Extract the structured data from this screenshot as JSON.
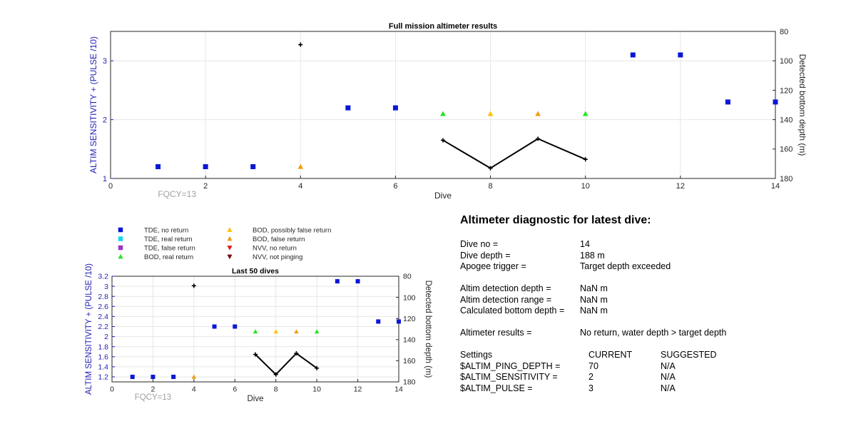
{
  "colors": {
    "axis_left": "#1f1fb4",
    "grid": "#e6e6e6",
    "tde_no_return": "#0a17d6",
    "tde_real_return": "#19d6f0",
    "tde_false_return": "#9b36c8",
    "bod_real_return": "#22e622",
    "bod_possibly_false": "#ffc100",
    "bod_false_return": "#f29d12",
    "nvv_no_return": "#e01818",
    "nvv_not_pinging": "#7a0d0d",
    "fqcy_text": "#a0a0a0"
  },
  "legend": {
    "items": [
      {
        "label": "TDE, no return",
        "marker": "square",
        "color": "#0a17d6"
      },
      {
        "label": "TDE, real return",
        "marker": "square",
        "color": "#19d6f0"
      },
      {
        "label": "TDE, false return",
        "marker": "square",
        "color": "#9b36c8"
      },
      {
        "label": "BOD, real return",
        "marker": "triangle-up",
        "color": "#22e622"
      },
      {
        "label": "BOD, possibly false return",
        "marker": "triangle-up",
        "color": "#ffc100"
      },
      {
        "label": "BOD, false return",
        "marker": "triangle-up",
        "color": "#f29d12"
      },
      {
        "label": "NVV, no return",
        "marker": "triangle-down",
        "color": "#e01818"
      },
      {
        "label": "NVV, not pinging",
        "marker": "triangle-down",
        "color": "#7a0d0d"
      }
    ]
  },
  "chart_data": [
    {
      "type": "scatter",
      "title": "Full mission altimeter results",
      "xlabel": "Dive",
      "ylabel": "ALTIM SENSITIVITY + (PULSE /10)",
      "ylabel_right": "Detected bottom depth (m)",
      "annotation": "FQCY=13",
      "xlim": [
        0,
        14
      ],
      "ylim": [
        1,
        3.5
      ],
      "ylim_right": [
        80,
        180
      ],
      "x_ticks": [
        "0",
        "2",
        "4",
        "6",
        "8",
        "10",
        "12",
        "14"
      ],
      "y_ticks": [
        "1",
        "2",
        "3"
      ],
      "y_ticks_right": [
        "80",
        "100",
        "120",
        "140",
        "160",
        "180"
      ],
      "grid": true,
      "points": [
        {
          "x": 1,
          "y": 1.2,
          "cls": "tde_no_return"
        },
        {
          "x": 2,
          "y": 1.2,
          "cls": "tde_no_return"
        },
        {
          "x": 3,
          "y": 1.2,
          "cls": "tde_no_return"
        },
        {
          "x": 4,
          "y": 1.2,
          "cls": "bod_false_return"
        },
        {
          "x": 5,
          "y": 2.2,
          "cls": "tde_no_return"
        },
        {
          "x": 6,
          "y": 2.2,
          "cls": "tde_no_return"
        },
        {
          "x": 7,
          "y": 2.1,
          "cls": "bod_real_return"
        },
        {
          "x": 8,
          "y": 2.1,
          "cls": "bod_possibly_false"
        },
        {
          "x": 9,
          "y": 2.1,
          "cls": "bod_false_return"
        },
        {
          "x": 10,
          "y": 2.1,
          "cls": "bod_real_return"
        },
        {
          "x": 11,
          "y": 3.1,
          "cls": "tde_no_return"
        },
        {
          "x": 12,
          "y": 3.1,
          "cls": "tde_no_return"
        },
        {
          "x": 13,
          "y": 2.3,
          "cls": "tde_no_return"
        },
        {
          "x": 14,
          "y": 2.3,
          "cls": "tde_no_return"
        }
      ],
      "bottom_depth": [
        {
          "x": 4,
          "depth": 89
        },
        {
          "x": 7,
          "depth": 154
        },
        {
          "x": 8,
          "depth": 173
        },
        {
          "x": 9,
          "depth": 153
        },
        {
          "x": 10,
          "depth": 167
        }
      ]
    },
    {
      "type": "scatter",
      "title": "Last 50 dives",
      "xlabel": "Dive",
      "ylabel": "ALTIM SENSITIVITY + (PULSE /10)",
      "ylabel_right": "Detected bottom depth (m)",
      "annotation": "FQCY=13",
      "xlim": [
        0,
        14
      ],
      "ylim": [
        1.1,
        3.2
      ],
      "ylim_right": [
        80,
        180
      ],
      "x_ticks": [
        "0",
        "2",
        "4",
        "6",
        "8",
        "10",
        "12",
        "14"
      ],
      "y_ticks": [
        "1.2",
        "1.4",
        "1.6",
        "1.8",
        "2",
        "2.2",
        "2.4",
        "2.6",
        "2.8",
        "3",
        "3.2"
      ],
      "y_ticks_right": [
        "80",
        "100",
        "120",
        "140",
        "160",
        "180"
      ],
      "grid": true,
      "points": [
        {
          "x": 1,
          "y": 1.2,
          "cls": "tde_no_return"
        },
        {
          "x": 2,
          "y": 1.2,
          "cls": "tde_no_return"
        },
        {
          "x": 3,
          "y": 1.2,
          "cls": "tde_no_return"
        },
        {
          "x": 4,
          "y": 1.2,
          "cls": "bod_false_return"
        },
        {
          "x": 5,
          "y": 2.2,
          "cls": "tde_no_return"
        },
        {
          "x": 6,
          "y": 2.2,
          "cls": "tde_no_return"
        },
        {
          "x": 7,
          "y": 2.1,
          "cls": "bod_real_return"
        },
        {
          "x": 8,
          "y": 2.1,
          "cls": "bod_possibly_false"
        },
        {
          "x": 9,
          "y": 2.1,
          "cls": "bod_false_return"
        },
        {
          "x": 10,
          "y": 2.1,
          "cls": "bod_real_return"
        },
        {
          "x": 11,
          "y": 3.1,
          "cls": "tde_no_return"
        },
        {
          "x": 12,
          "y": 3.1,
          "cls": "tde_no_return"
        },
        {
          "x": 13,
          "y": 2.3,
          "cls": "tde_no_return"
        },
        {
          "x": 14,
          "y": 2.3,
          "cls": "tde_no_return"
        }
      ],
      "bottom_depth": [
        {
          "x": 4,
          "depth": 89
        },
        {
          "x": 7,
          "depth": 154
        },
        {
          "x": 8,
          "depth": 173
        },
        {
          "x": 9,
          "depth": 153
        },
        {
          "x": 10,
          "depth": 167
        }
      ]
    }
  ],
  "diagnostic": {
    "title": "Altimeter diagnostic for latest dive:",
    "dive_no_label": "Dive no =",
    "dive_no": "14",
    "dive_depth_label": "Dive depth =",
    "dive_depth": "188 m",
    "apogee_label": "Apogee trigger =",
    "apogee": "Target depth exceeded",
    "altim_depth_label": "Altim detection depth =",
    "altim_depth": "NaN m",
    "altim_range_label": "Altim detection range =",
    "altim_range": "NaN m",
    "calc_depth_label": "Calculated bottom depth =",
    "calc_depth": "NaN m",
    "results_label": "Altimeter results =",
    "results": "No return, water depth > target depth",
    "settings_label": "Settings",
    "current_label": "CURRENT",
    "suggested_label": "SUGGESTED",
    "settings": [
      {
        "name": "$ALTIM_PING_DEPTH =",
        "current": "70",
        "suggested": "N/A"
      },
      {
        "name": "$ALTIM_SENSITIVITY =",
        "current": "2",
        "suggested": "N/A"
      },
      {
        "name": "$ALTIM_PULSE =",
        "current": "3",
        "suggested": "N/A"
      }
    ]
  }
}
